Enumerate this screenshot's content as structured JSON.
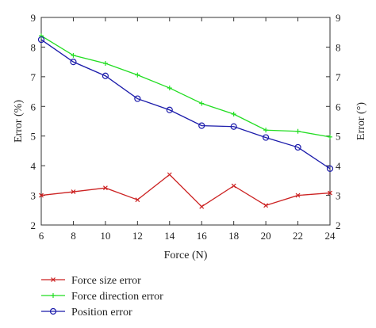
{
  "chart_data": {
    "type": "line",
    "xlabel": "Force (N)",
    "ylabel_left": "Error (%)",
    "ylabel_right": "Error (°)",
    "xlim": [
      6,
      24
    ],
    "ylim": [
      2,
      9
    ],
    "x_ticks": [
      6,
      8,
      10,
      12,
      14,
      16,
      18,
      20,
      22,
      24
    ],
    "y_ticks": [
      2,
      3,
      4,
      5,
      6,
      7,
      8,
      9
    ],
    "grid": false,
    "legend_position": "bottom-left, below plot",
    "x": [
      6,
      8,
      10,
      12,
      14,
      16,
      18,
      20,
      22,
      24
    ],
    "series": [
      {
        "name": "Force size error",
        "color": "#cc2222",
        "marker": "x",
        "values": [
          3.0,
          3.12,
          3.25,
          2.85,
          3.7,
          2.62,
          3.32,
          2.66,
          3.0,
          3.08
        ]
      },
      {
        "name": "Force direction error",
        "color": "#22dd22",
        "marker": "plus",
        "values": [
          8.38,
          7.72,
          7.45,
          7.06,
          6.62,
          6.1,
          5.74,
          5.2,
          5.16,
          4.97
        ]
      },
      {
        "name": "Position error",
        "color": "#1a1aaa",
        "marker": "circle",
        "values": [
          8.25,
          7.5,
          7.03,
          6.26,
          5.88,
          5.35,
          5.32,
          4.95,
          4.62,
          3.9
        ]
      }
    ]
  }
}
